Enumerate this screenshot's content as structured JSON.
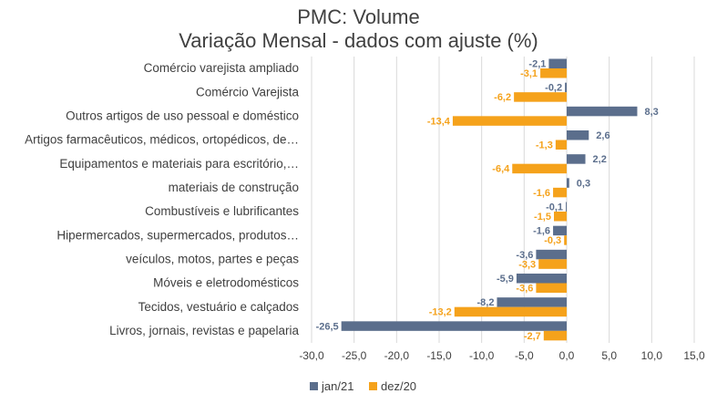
{
  "chart_data": {
    "type": "bar",
    "orientation": "horizontal",
    "title": "PMC: Volume",
    "subtitle": "Variação Mensal - dados com ajuste (%)",
    "categories": [
      "Comércio varejista ampliado",
      "Comércio Varejista",
      "Outros artigos de uso pessoal e doméstico",
      "Artigos farmacêuticos, médicos, ortopédicos, de…",
      "Equipamentos e materiais para escritório,…",
      "materiais de construção",
      "Combustíveis e lubrificantes",
      "Hipermercados, supermercados, produtos…",
      "veículos, motos, partes e peças",
      "Móveis e eletrodomésticos",
      "Tecidos, vestuário e calçados",
      "Livros, jornais, revistas e papelaria"
    ],
    "series": [
      {
        "name": "jan/21",
        "color": "#5B6E8C",
        "values": [
          -2.1,
          -0.2,
          8.3,
          2.6,
          2.2,
          0.3,
          -0.1,
          -1.6,
          -3.6,
          -5.9,
          -8.2,
          -26.5
        ],
        "labels": [
          "-2,1",
          "-0,2",
          "8,3",
          "2,6",
          "2,2",
          "0,3",
          "-0,1",
          "-1,6",
          "-3,6",
          "-5,9",
          "-8,2",
          "-26,5"
        ]
      },
      {
        "name": "dez/20",
        "color": "#F5A21B",
        "values": [
          -3.1,
          -6.2,
          -13.4,
          -1.3,
          -6.4,
          -1.6,
          -1.5,
          -0.3,
          -3.3,
          -3.6,
          -13.2,
          -2.7
        ],
        "labels": [
          "-3,1",
          "-6,2",
          "-13,4",
          "-1,3",
          "-6,4",
          "-1,6",
          "-1,5",
          "-0,3",
          "-3,3",
          "-3,6",
          "-13,2",
          "-2,7"
        ]
      }
    ],
    "xlim": [
      -30,
      15
    ],
    "xticks": [
      -30,
      -25,
      -20,
      -15,
      -10,
      -5,
      0,
      5,
      10,
      15
    ],
    "xtick_labels": [
      "-30,0",
      "-25,0",
      "-20,0",
      "-15,0",
      "-10,0",
      "-5,0",
      "0,0",
      "5,0",
      "10,0",
      "15,0"
    ],
    "grid": true,
    "legend_position": "bottom"
  }
}
